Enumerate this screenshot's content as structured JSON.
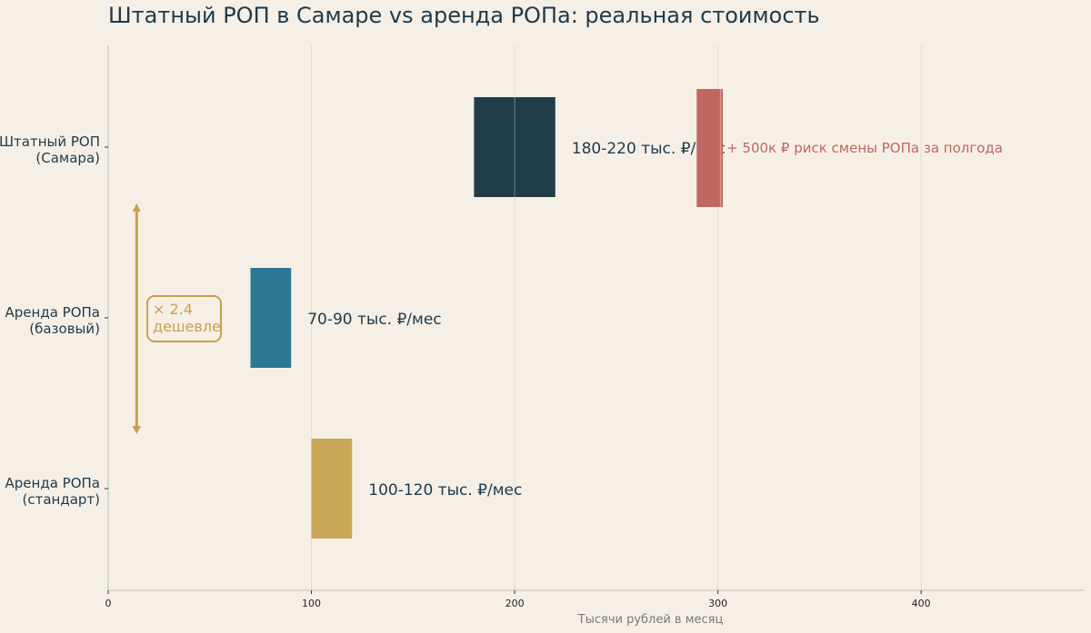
{
  "chart_data": {
    "type": "bar",
    "orientation": "horizontal-range",
    "title": "Штатный РОП в Самаре vs аренда РОПа: реальная стоимость",
    "xlabel": "Тысячи рублей в месяц",
    "ylabel": "",
    "xlim": [
      0,
      480
    ],
    "xticks": [
      0,
      100,
      200,
      300,
      400
    ],
    "grid": true,
    "categories": [
      {
        "label_lines": [
          "Штатный РОП",
          "(Самара)"
        ],
        "from": 180,
        "to": 220,
        "midline": 200,
        "color": "#223d4a",
        "value_label": "180-220 тыс. ₽/мес"
      },
      {
        "label_lines": [
          "Аренда РОПа",
          "(базовый)"
        ],
        "from": 70,
        "to": 90,
        "color": "#2a7895",
        "value_label": "70-90 тыс. ₽/мес"
      },
      {
        "label_lines": [
          "Аренда РОПа",
          "(стандарт)"
        ],
        "from": 100,
        "to": 120,
        "color": "#c9a857",
        "value_label": "100-120 тыс. ₽/мес"
      }
    ],
    "risk": {
      "row": 0,
      "from": 290,
      "to": 302,
      "color": "#c06762",
      "label": "+ 500к ₽ риск смены РОПа за полгода"
    },
    "comparison": {
      "x": 14,
      "from_row": 0,
      "to_row": 2,
      "text_lines": [
        "× 2.4",
        "дешевле"
      ],
      "color": "#c9a14d"
    }
  }
}
